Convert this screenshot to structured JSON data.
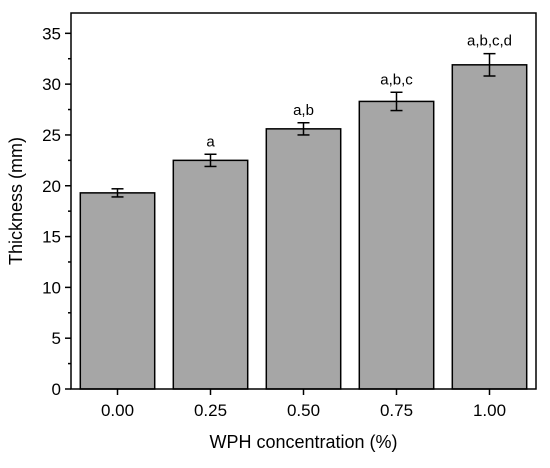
{
  "chart_data": {
    "type": "bar",
    "categories": [
      "0.00",
      "0.25",
      "0.50",
      "0.75",
      "1.00"
    ],
    "values": [
      19.3,
      22.5,
      25.6,
      28.3,
      31.9
    ],
    "errors": [
      0.4,
      0.6,
      0.6,
      0.9,
      1.1
    ],
    "annotations": [
      "",
      "a",
      "a,b",
      "a,b,c",
      "a,b,c,d"
    ],
    "xlabel": "WPH concentration (%)",
    "ylabel": "Thickness (mm)",
    "ylim": [
      0,
      37
    ],
    "yticks": [
      0,
      5,
      10,
      15,
      20,
      25,
      30,
      35
    ],
    "grid": false,
    "bar_color": "#a6a6a6",
    "edge_color": "#000000"
  }
}
